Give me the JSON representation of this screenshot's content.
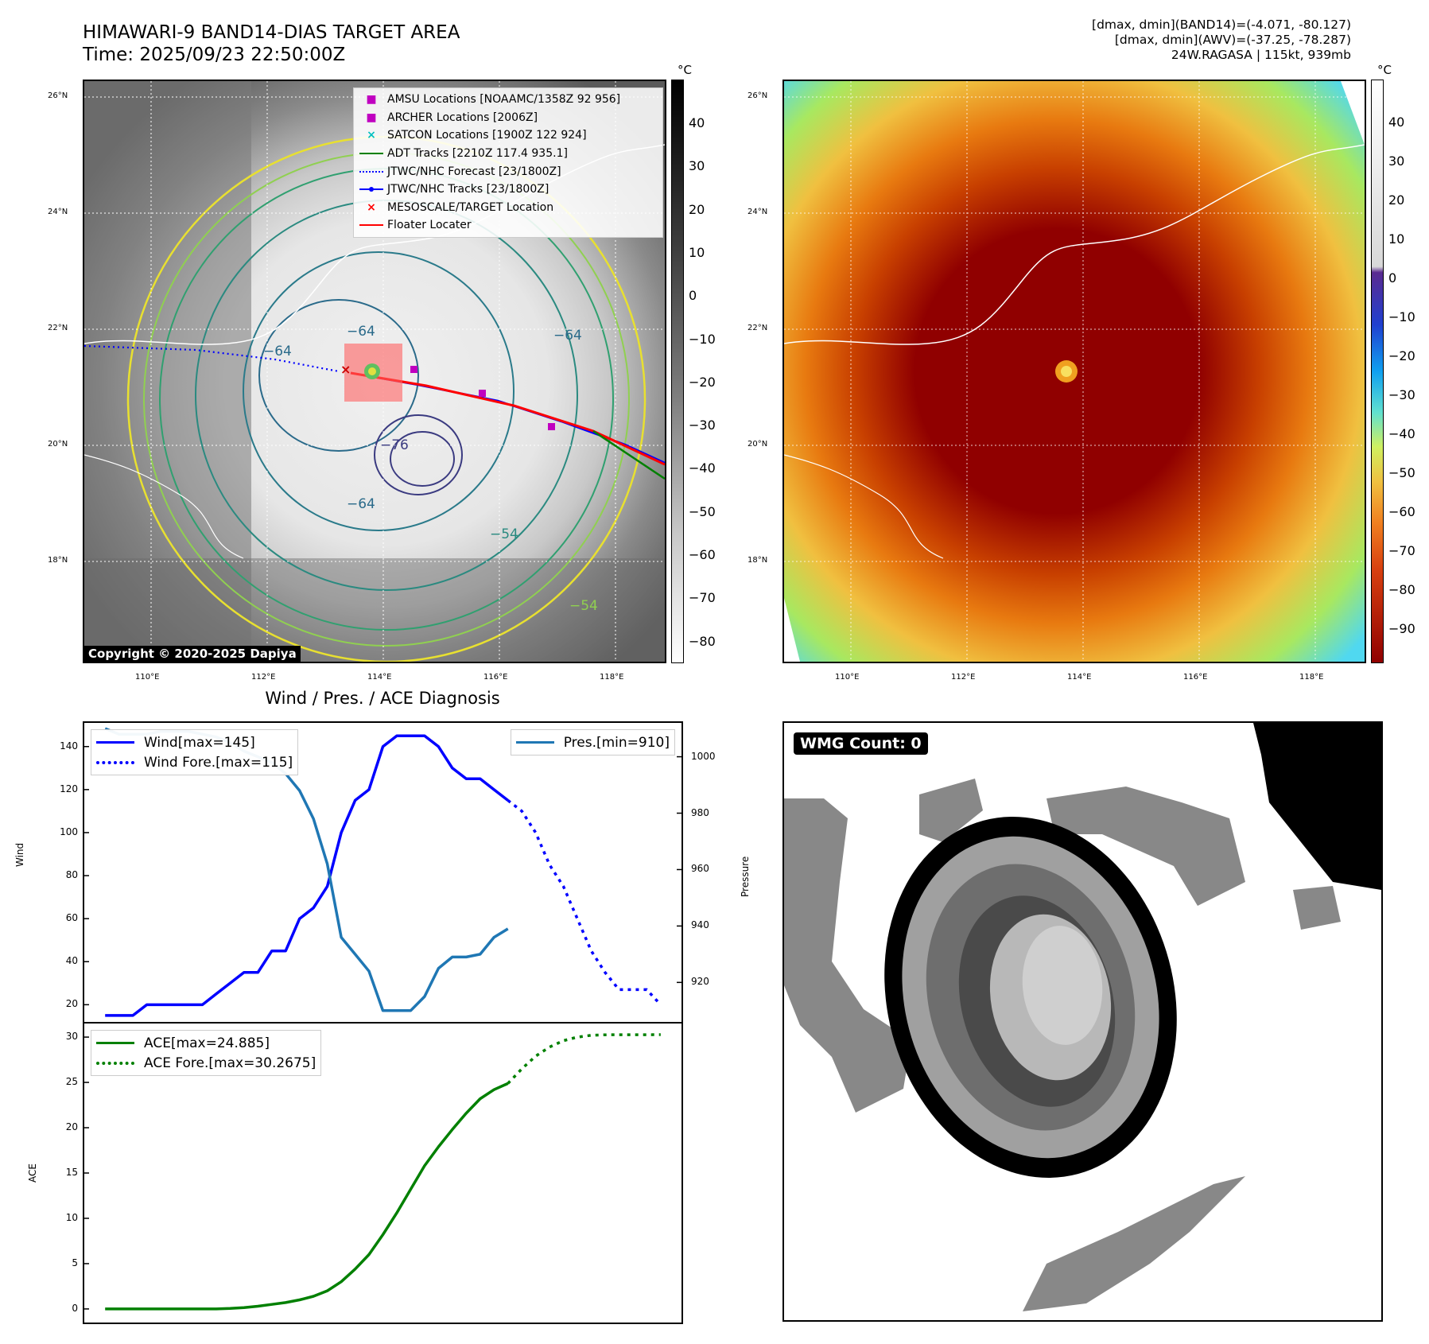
{
  "header": {
    "title_line1": "HIMAWARI-9 BAND14-DIAS TARGET AREA",
    "title_line2": "Time: 2025/09/23 22:50:00Z",
    "info_line1": "[dmax, dmin](BAND14)=(-4.071, -80.127)",
    "info_line2": "[dmax, dmin](AWV)=(-37.25, -78.287)",
    "info_line3": "24W.RAGASA | 115kt, 939mb"
  },
  "map": {
    "lat_labels": [
      "26°N",
      "24°N",
      "22°N",
      "20°N",
      "18°N"
    ],
    "lon_labels": [
      "110°E",
      "112°E",
      "114°E",
      "116°E",
      "118°E"
    ],
    "copyright": "Copyright © 2020-2025 Dapiya",
    "contour_labels": [
      "−64",
      "−64",
      "−64",
      "−76",
      "−64",
      "−54",
      "−54"
    ],
    "legend": [
      {
        "label": "AMSU Locations [NOAAMC/1358Z 92 956]",
        "symbol": "■",
        "color": "#c000c0"
      },
      {
        "label": "ARCHER Locations [2006Z]",
        "symbol": "■",
        "color": "#c000c0"
      },
      {
        "label": "SATCON Locations [1900Z 122 924]",
        "symbol": "×",
        "color": "#00c0c0"
      },
      {
        "label": "ADT Tracks [2210Z 117.4 935.1]",
        "symbol": "line",
        "color": "#008000"
      },
      {
        "label": "JTWC/NHC Forecast [23/1800Z]",
        "symbol": "dotted",
        "color": "#0000ff"
      },
      {
        "label": "JTWC/NHC Tracks [23/1800Z]",
        "symbol": "line-dot",
        "color": "#0000ff"
      },
      {
        "label": "MESOSCALE/TARGET Location",
        "symbol": "×",
        "color": "#ff0000"
      },
      {
        "label": "Floater Locater",
        "symbol": "line",
        "color": "#ff0000"
      }
    ],
    "colorbar_left": {
      "unit": "°C",
      "ticks": [
        "40",
        "30",
        "20",
        "10",
        "0",
        "−10",
        "−20",
        "−30",
        "−40",
        "−50",
        "−60",
        "−70",
        "−80"
      ]
    },
    "colorbar_right": {
      "unit": "°C",
      "ticks": [
        "40",
        "30",
        "20",
        "10",
        "0",
        "−10",
        "−20",
        "−30",
        "−40",
        "−50",
        "−60",
        "−70",
        "−80",
        "−90"
      ]
    }
  },
  "chart_data": [
    {
      "type": "line",
      "title": "Wind / Pres. / ACE Diagnosis",
      "ylabel": "Wind",
      "y2label": "Pressure",
      "ylim": [
        12,
        151
      ],
      "y2lim": [
        906,
        1012
      ],
      "yticks": [
        20,
        40,
        60,
        80,
        100,
        120,
        140
      ],
      "y2ticks": [
        920,
        940,
        960,
        980,
        1000
      ],
      "series": [
        {
          "name": "Wind[max=145]",
          "color": "#0000ff",
          "style": "solid",
          "axis": "left",
          "x": [
            0,
            1,
            2,
            3,
            4,
            5,
            6,
            7,
            8,
            9,
            10,
            11,
            12,
            13,
            14,
            15,
            16,
            17,
            18,
            19,
            20,
            21,
            22,
            23,
            24,
            25,
            26,
            27,
            28,
            29
          ],
          "values": [
            15,
            15,
            15,
            20,
            20,
            20,
            20,
            20,
            25,
            30,
            35,
            35,
            45,
            45,
            60,
            65,
            75,
            100,
            115,
            120,
            140,
            145,
            145,
            145,
            140,
            130,
            125,
            125,
            120,
            115
          ]
        },
        {
          "name": "Wind Fore.[max=115]",
          "color": "#0000ff",
          "style": "dotted",
          "axis": "left",
          "x": [
            29,
            30,
            31,
            32,
            33,
            34,
            35,
            36,
            37,
            38,
            39,
            40
          ],
          "values": [
            115,
            110,
            100,
            85,
            75,
            60,
            45,
            35,
            27,
            27,
            27,
            20
          ]
        },
        {
          "name": "Pres.[min=910]",
          "color": "#1f77b4",
          "style": "solid",
          "axis": "right",
          "x": [
            0,
            1,
            2,
            3,
            4,
            5,
            6,
            7,
            8,
            9,
            10,
            11,
            12,
            13,
            14,
            15,
            16,
            17,
            18,
            19,
            20,
            21,
            22,
            23,
            24,
            25,
            26,
            27,
            28,
            29
          ],
          "values": [
            1010,
            1008,
            1008,
            1008,
            1009,
            1009,
            1009,
            1008,
            1007,
            1005,
            1002,
            1000,
            998,
            994,
            988,
            978,
            962,
            936,
            930,
            924,
            910,
            910,
            910,
            915,
            925,
            929,
            929,
            930,
            936,
            939
          ]
        }
      ]
    },
    {
      "type": "line",
      "ylabel": "ACE",
      "ylim": [
        -1.5,
        31.5
      ],
      "yticks": [
        0,
        5,
        10,
        15,
        20,
        25,
        30
      ],
      "series": [
        {
          "name": "ACE[max=24.885]",
          "color": "#008000",
          "style": "solid",
          "x": [
            0,
            1,
            2,
            3,
            4,
            5,
            6,
            7,
            8,
            9,
            10,
            11,
            12,
            13,
            14,
            15,
            16,
            17,
            18,
            19,
            20,
            21,
            22,
            23,
            24,
            25,
            26,
            27,
            28,
            29
          ],
          "values": [
            0,
            0,
            0,
            0,
            0,
            0,
            0,
            0,
            0,
            0.05,
            0.15,
            0.3,
            0.5,
            0.7,
            1.0,
            1.4,
            2.0,
            3.0,
            4.4,
            6.0,
            8.2,
            10.6,
            13.2,
            15.8,
            17.9,
            19.8,
            21.6,
            23.2,
            24.2,
            24.885
          ]
        },
        {
          "name": "ACE Fore.[max=30.2675]",
          "color": "#008000",
          "style": "dotted",
          "x": [
            29,
            30,
            31,
            32,
            33,
            34,
            35,
            36,
            37,
            38,
            39,
            40
          ],
          "values": [
            24.885,
            26.5,
            27.9,
            28.9,
            29.6,
            30.0,
            30.2,
            30.25,
            30.26,
            30.26,
            30.26,
            30.2675
          ]
        }
      ]
    }
  ],
  "wmg": {
    "badge": "WMG Count: 0"
  }
}
